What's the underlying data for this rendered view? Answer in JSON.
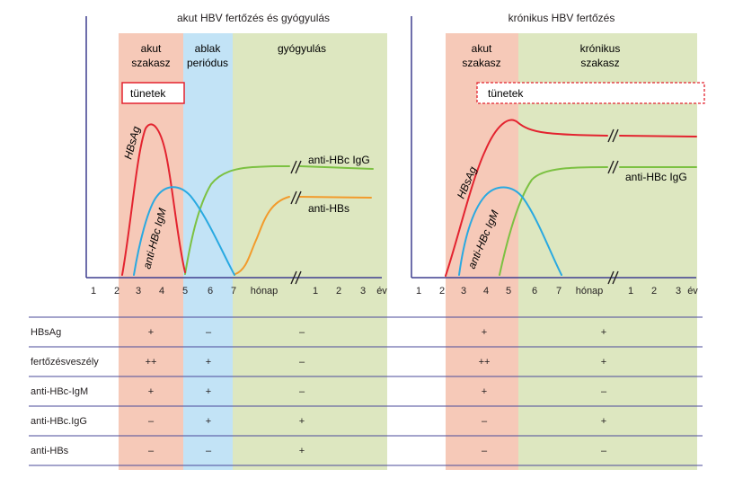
{
  "colors": {
    "pink": "#f6c9b8",
    "blue": "#c2e3f6",
    "green": "#dde7c0",
    "axis": "#3f3f8f",
    "hbsag": "#e3232f",
    "igm": "#29a9e1",
    "igg": "#7cc142",
    "antihbs": "#f29b2c",
    "box_border": "#e3232f"
  },
  "left_panel": {
    "title": "akut HBV fertőzés és gyógyulás",
    "phase_acute": [
      "akut",
      "szakasz"
    ],
    "phase_window": [
      "ablak",
      "periódus"
    ],
    "phase_recovery": "gyógyulás",
    "symptoms": "tünetek",
    "labels": {
      "hbsag": "HBsAg",
      "igm": "anti-HBc IgM",
      "igg": "anti-HBc IgG",
      "antihbs": "anti-HBs"
    },
    "ticks": [
      "1",
      "2",
      "3",
      "4",
      "5",
      "6",
      "7",
      "hónap",
      "1",
      "2",
      "3",
      "év"
    ]
  },
  "right_panel": {
    "title": "krónikus HBV fertőzés",
    "phase_acute": [
      "akut",
      "szakasz"
    ],
    "phase_chronic": [
      "krónikus",
      "szakasz"
    ],
    "symptoms": "tünetek",
    "labels": {
      "hbsag": "HBsAg",
      "igm": "anti-HBc IgM",
      "igg": "anti-HBc IgG"
    },
    "ticks": [
      "1",
      "2",
      "3",
      "4",
      "5",
      "6",
      "7",
      "hónap",
      "1",
      "2",
      "3",
      "év"
    ]
  },
  "table": {
    "rows": [
      {
        "label": "HBsAg",
        "left": [
          "+",
          "–",
          "–"
        ],
        "right": [
          "+",
          "+"
        ]
      },
      {
        "label": "fertőzésveszély",
        "left": [
          "++",
          "+",
          "–"
        ],
        "right": [
          "++",
          "+"
        ]
      },
      {
        "label": "anti-HBc-IgM",
        "left": [
          "+",
          "+",
          "–"
        ],
        "right": [
          "+",
          "–"
        ]
      },
      {
        "label": "anti-HBc.IgG",
        "left": [
          "–",
          "+",
          "+"
        ],
        "right": [
          "–",
          "+"
        ]
      },
      {
        "label": "anti-HBs",
        "left": [
          "–",
          "–",
          "+"
        ],
        "right": [
          "–",
          "–"
        ]
      }
    ]
  }
}
